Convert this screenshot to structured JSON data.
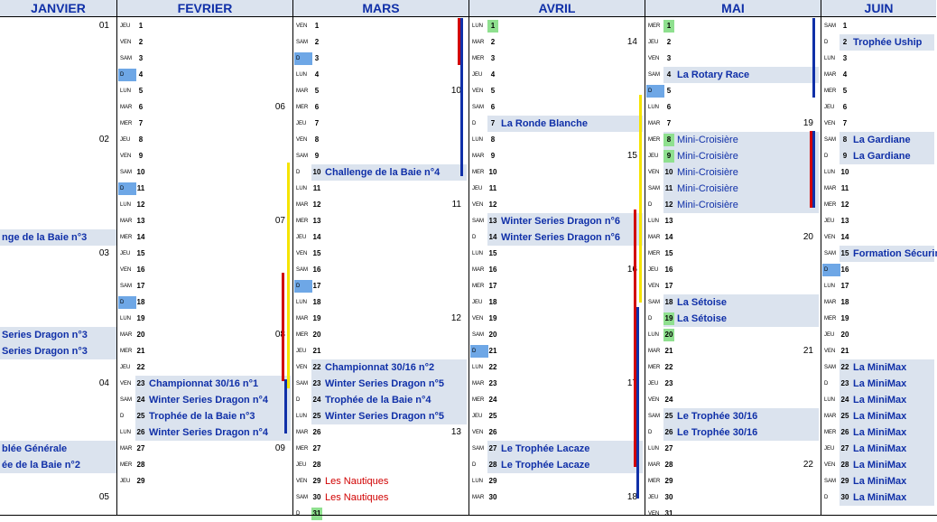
{
  "months": [
    {
      "name": "JANVIER",
      "rows": [
        {
          "wk": "01"
        },
        null,
        null,
        null,
        null,
        null,
        null,
        {
          "wk": "02"
        },
        null,
        null,
        null,
        null,
        null,
        {
          "label": "nge de la Baie n°3",
          "bold": true
        },
        {
          "wk": "03"
        },
        null,
        null,
        null,
        null,
        {
          "label": "Series Dragon n°3",
          "bold": true
        },
        {
          "label": "Series Dragon n°3",
          "bold": true
        },
        null,
        {
          "wk": "04"
        },
        null,
        null,
        null,
        {
          "label": "blée Générale",
          "bold": true
        },
        {
          "label": "ée de la Baie n°2",
          "bold": true
        },
        null,
        {
          "wk": "05"
        }
      ]
    },
    {
      "name": "FEVRIER",
      "rows": [
        {
          "d": "JEU",
          "n": "1"
        },
        {
          "d": "VEN",
          "n": "2"
        },
        {
          "d": "SAM",
          "n": "3"
        },
        {
          "d": "D",
          "n": "4",
          "dim": true
        },
        {
          "d": "LUN",
          "n": "5"
        },
        {
          "d": "MAR",
          "n": "6",
          "wk": "06"
        },
        {
          "d": "MER",
          "n": "7"
        },
        {
          "d": "JEU",
          "n": "8"
        },
        {
          "d": "VEN",
          "n": "9"
        },
        {
          "d": "SAM",
          "n": "10"
        },
        {
          "d": "D",
          "n": "11",
          "dim": true
        },
        {
          "d": "LUN",
          "n": "12"
        },
        {
          "d": "MAR",
          "n": "13",
          "wk": "07"
        },
        {
          "d": "MER",
          "n": "14"
        },
        {
          "d": "JEU",
          "n": "15"
        },
        {
          "d": "VEN",
          "n": "16"
        },
        {
          "d": "SAM",
          "n": "17"
        },
        {
          "d": "D",
          "n": "18",
          "dim": true
        },
        {
          "d": "LUN",
          "n": "19"
        },
        {
          "d": "MAR",
          "n": "20",
          "wk": "08"
        },
        {
          "d": "MER",
          "n": "21"
        },
        {
          "d": "JEU",
          "n": "22"
        },
        {
          "d": "VEN",
          "n": "23",
          "label": "Championnat 30/16 n°1",
          "bold": true
        },
        {
          "d": "SAM",
          "n": "24",
          "label": "Winter Series Dragon n°4",
          "bold": true
        },
        {
          "d": "D",
          "n": "25",
          "label": "Trophée de la Baie n°3",
          "bold": true
        },
        {
          "d": "LUN",
          "n": "26",
          "label": "Winter Series Dragon n°4",
          "bold": true
        },
        {
          "d": "MAR",
          "n": "27",
          "wk": "09"
        },
        {
          "d": "MER",
          "n": "28"
        },
        {
          "d": "JEU",
          "n": "29"
        }
      ]
    },
    {
      "name": "MARS",
      "rows": [
        {
          "d": "VEN",
          "n": "1"
        },
        {
          "d": "SAM",
          "n": "2"
        },
        {
          "d": "D",
          "n": "3",
          "dim": true
        },
        {
          "d": "LUN",
          "n": "4"
        },
        {
          "d": "MAR",
          "n": "5",
          "wk": "10"
        },
        {
          "d": "MER",
          "n": "6"
        },
        {
          "d": "JEU",
          "n": "7"
        },
        {
          "d": "VEN",
          "n": "8"
        },
        {
          "d": "SAM",
          "n": "9"
        },
        {
          "d": "D",
          "n": "10",
          "label": "Challenge de la Baie n°4",
          "bold": true
        },
        {
          "d": "LUN",
          "n": "11"
        },
        {
          "d": "MAR",
          "n": "12",
          "wk": "11"
        },
        {
          "d": "MER",
          "n": "13"
        },
        {
          "d": "JEU",
          "n": "14"
        },
        {
          "d": "VEN",
          "n": "15"
        },
        {
          "d": "SAM",
          "n": "16"
        },
        {
          "d": "D",
          "n": "17",
          "dim": true
        },
        {
          "d": "LUN",
          "n": "18"
        },
        {
          "d": "MAR",
          "n": "19",
          "wk": "12"
        },
        {
          "d": "MER",
          "n": "20"
        },
        {
          "d": "JEU",
          "n": "21"
        },
        {
          "d": "VEN",
          "n": "22",
          "label": "Championnat 30/16 n°2",
          "bold": true
        },
        {
          "d": "SAM",
          "n": "23",
          "label": "Winter Series Dragon n°5",
          "bold": true
        },
        {
          "d": "D",
          "n": "24",
          "label": "Trophée de la Baie n°4",
          "bold": true
        },
        {
          "d": "LUN",
          "n": "25",
          "label": "Winter Series Dragon n°5",
          "bold": true
        },
        {
          "d": "MAR",
          "n": "26",
          "wk": "13"
        },
        {
          "d": "MER",
          "n": "27"
        },
        {
          "d": "JEU",
          "n": "28"
        },
        {
          "d": "VEN",
          "n": "29",
          "label": "Les Nautiques",
          "red": true
        },
        {
          "d": "SAM",
          "n": "30",
          "label": "Les Nautiques",
          "red": true
        },
        {
          "d": "D",
          "n": "31",
          "hi": true,
          "dim": true
        }
      ]
    },
    {
      "name": "AVRIL",
      "rows": [
        {
          "d": "LUN",
          "n": "1",
          "hi": true
        },
        {
          "d": "MAR",
          "n": "2",
          "wk": "14"
        },
        {
          "d": "MER",
          "n": "3"
        },
        {
          "d": "JEU",
          "n": "4"
        },
        {
          "d": "VEN",
          "n": "5"
        },
        {
          "d": "SAM",
          "n": "6"
        },
        {
          "d": "D",
          "n": "7",
          "label": "La Ronde Blanche",
          "bold": true
        },
        {
          "d": "LUN",
          "n": "8"
        },
        {
          "d": "MAR",
          "n": "9",
          "wk": "15"
        },
        {
          "d": "MER",
          "n": "10"
        },
        {
          "d": "JEU",
          "n": "11"
        },
        {
          "d": "VEN",
          "n": "12"
        },
        {
          "d": "SAM",
          "n": "13",
          "label": "Winter Series Dragon n°6",
          "bold": true
        },
        {
          "d": "D",
          "n": "14",
          "label": "Winter Series Dragon n°6",
          "bold": true
        },
        {
          "d": "LUN",
          "n": "15"
        },
        {
          "d": "MAR",
          "n": "16",
          "wk": "16"
        },
        {
          "d": "MER",
          "n": "17"
        },
        {
          "d": "JEU",
          "n": "18"
        },
        {
          "d": "VEN",
          "n": "19"
        },
        {
          "d": "SAM",
          "n": "20"
        },
        {
          "d": "D",
          "n": "21",
          "dim": true
        },
        {
          "d": "LUN",
          "n": "22"
        },
        {
          "d": "MAR",
          "n": "23",
          "wk": "17"
        },
        {
          "d": "MER",
          "n": "24"
        },
        {
          "d": "JEU",
          "n": "25"
        },
        {
          "d": "VEN",
          "n": "26"
        },
        {
          "d": "SAM",
          "n": "27",
          "label": "Le Trophée Lacaze",
          "bold": true
        },
        {
          "d": "D",
          "n": "28",
          "label": "Le Trophée Lacaze",
          "bold": true
        },
        {
          "d": "LUN",
          "n": "29"
        },
        {
          "d": "MAR",
          "n": "30",
          "wk": "18"
        }
      ]
    },
    {
      "name": "MAI",
      "rows": [
        {
          "d": "MER",
          "n": "1",
          "hi": true
        },
        {
          "d": "JEU",
          "n": "2"
        },
        {
          "d": "VEN",
          "n": "3"
        },
        {
          "d": "SAM",
          "n": "4",
          "label": "La Rotary Race",
          "bold": true
        },
        {
          "d": "D",
          "n": "5",
          "dim": true
        },
        {
          "d": "LUN",
          "n": "6"
        },
        {
          "d": "MAR",
          "n": "7",
          "wk": "19"
        },
        {
          "d": "MER",
          "n": "8",
          "hi": true,
          "label": "Mini-Croisière"
        },
        {
          "d": "JEU",
          "n": "9",
          "hi": true,
          "label": "Mini-Croisière"
        },
        {
          "d": "VEN",
          "n": "10",
          "label": "Mini-Croisière"
        },
        {
          "d": "SAM",
          "n": "11",
          "label": "Mini-Croisière"
        },
        {
          "d": "D",
          "n": "12",
          "label": "Mini-Croisière"
        },
        {
          "d": "LUN",
          "n": "13"
        },
        {
          "d": "MAR",
          "n": "14",
          "wk": "20"
        },
        {
          "d": "MER",
          "n": "15"
        },
        {
          "d": "JEU",
          "n": "16"
        },
        {
          "d": "VEN",
          "n": "17"
        },
        {
          "d": "SAM",
          "n": "18",
          "label": "La Sétoise",
          "bold": true
        },
        {
          "d": "D",
          "n": "19",
          "hi": true,
          "label": "La Sétoise",
          "bold": true
        },
        {
          "d": "LUN",
          "n": "20",
          "hi": true
        },
        {
          "d": "MAR",
          "n": "21",
          "wk": "21"
        },
        {
          "d": "MER",
          "n": "22"
        },
        {
          "d": "JEU",
          "n": "23"
        },
        {
          "d": "VEN",
          "n": "24"
        },
        {
          "d": "SAM",
          "n": "25",
          "label": "Le Trophée 30/16",
          "bold": true
        },
        {
          "d": "D",
          "n": "26",
          "label": "Le Trophée 30/16",
          "bold": true
        },
        {
          "d": "LUN",
          "n": "27"
        },
        {
          "d": "MAR",
          "n": "28",
          "wk": "22"
        },
        {
          "d": "MER",
          "n": "29"
        },
        {
          "d": "JEU",
          "n": "30"
        },
        {
          "d": "VEN",
          "n": "31"
        }
      ]
    },
    {
      "name": "JUIN",
      "rows": [
        {
          "d": "SAM",
          "n": "1"
        },
        {
          "d": "D",
          "n": "2",
          "label": "Trophée Uship",
          "bold": true
        },
        {
          "d": "LUN",
          "n": "3"
        },
        {
          "d": "MAR",
          "n": "4"
        },
        {
          "d": "MER",
          "n": "5"
        },
        {
          "d": "JEU",
          "n": "6"
        },
        {
          "d": "VEN",
          "n": "7"
        },
        {
          "d": "SAM",
          "n": "8",
          "label": "La Gardiane",
          "bold": true
        },
        {
          "d": "D",
          "n": "9",
          "label": "La Gardiane",
          "bold": true
        },
        {
          "d": "LUN",
          "n": "10"
        },
        {
          "d": "MAR",
          "n": "11"
        },
        {
          "d": "MER",
          "n": "12"
        },
        {
          "d": "JEU",
          "n": "13"
        },
        {
          "d": "VEN",
          "n": "14"
        },
        {
          "d": "SAM",
          "n": "15",
          "label": "Formation Sécurim",
          "bold": true
        },
        {
          "d": "D",
          "n": "16",
          "dim": true
        },
        {
          "d": "LUN",
          "n": "17"
        },
        {
          "d": "MAR",
          "n": "18"
        },
        {
          "d": "MER",
          "n": "19"
        },
        {
          "d": "JEU",
          "n": "20"
        },
        {
          "d": "VEN",
          "n": "21"
        },
        {
          "d": "SAM",
          "n": "22",
          "label": "La MiniMax",
          "bold": true
        },
        {
          "d": "D",
          "n": "23",
          "label": "La MiniMax",
          "bold": true
        },
        {
          "d": "LUN",
          "n": "24",
          "label": "La MiniMax",
          "bold": true
        },
        {
          "d": "MAR",
          "n": "25",
          "label": "La MiniMax",
          "bold": true
        },
        {
          "d": "MER",
          "n": "26",
          "label": "La MiniMax",
          "bold": true
        },
        {
          "d": "JEU",
          "n": "27",
          "label": "La MiniMax",
          "bold": true
        },
        {
          "d": "VEN",
          "n": "28",
          "label": "La MiniMax",
          "bold": true
        },
        {
          "d": "SAM",
          "n": "29",
          "label": "La MiniMax",
          "bold": true
        },
        {
          "d": "D",
          "n": "30",
          "label": "La MiniMax",
          "bold": true
        }
      ]
    }
  ],
  "colors": {
    "header_bg": "#dbe3ee",
    "event_bg": "#dbe3ee",
    "dim": "#6ea7e6",
    "highlight": "#8fe08f",
    "event_text": "#1030a8",
    "red_text": "#d10000",
    "bar_red": "#d10000",
    "bar_blue": "#1030a8",
    "bar_yellow": "#f5e400"
  }
}
